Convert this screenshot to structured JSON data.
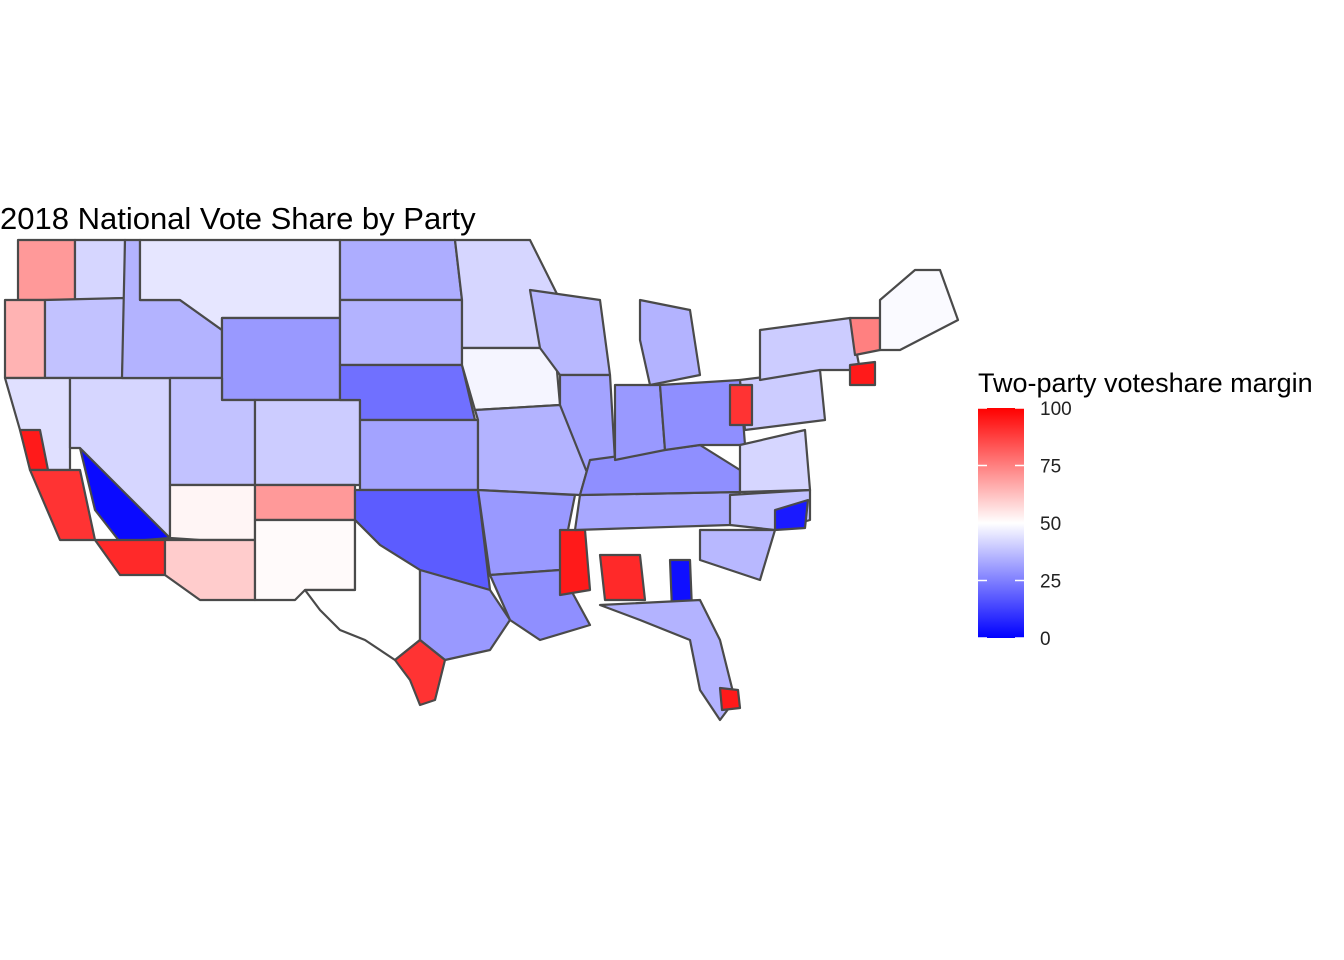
{
  "title": "2018 National Vote Share by Party",
  "legend": {
    "title": "Two-party voteshare margin",
    "ticks": [
      "100",
      "75",
      "50",
      "25",
      "0"
    ],
    "scale": {
      "min": 0,
      "mid": 50,
      "max": 100,
      "low_color": "#0000ff",
      "mid_color": "#ffffff",
      "high_color": "#ff0000"
    }
  },
  "map": {
    "projection": "contiguous-us",
    "border_color": "#4a4a4a",
    "districts": [
      {
        "id": "wa-west",
        "value": 70
      },
      {
        "id": "wa-east",
        "value": 42
      },
      {
        "id": "or-coast",
        "value": 65
      },
      {
        "id": "or-east",
        "value": 38
      },
      {
        "id": "ca-north",
        "value": 44
      },
      {
        "id": "ca-bay",
        "value": 95
      },
      {
        "id": "ca-central",
        "value": 90
      },
      {
        "id": "ca-east",
        "value": 2
      },
      {
        "id": "ca-south",
        "value": 92
      },
      {
        "id": "nv",
        "value": 42
      },
      {
        "id": "id",
        "value": 35
      },
      {
        "id": "mt",
        "value": 45
      },
      {
        "id": "wy",
        "value": 30
      },
      {
        "id": "ut",
        "value": 38
      },
      {
        "id": "az-north",
        "value": 52
      },
      {
        "id": "az-south",
        "value": 60
      },
      {
        "id": "co",
        "value": 40
      },
      {
        "id": "nm",
        "value": 51
      },
      {
        "id": "nm-north",
        "value": 70
      },
      {
        "id": "nd",
        "value": 34
      },
      {
        "id": "sd",
        "value": 35
      },
      {
        "id": "ne",
        "value": 22
      },
      {
        "id": "ks",
        "value": 32
      },
      {
        "id": "ok",
        "value": 18
      },
      {
        "id": "tx-west",
        "value": 50
      },
      {
        "id": "tx-east",
        "value": 30
      },
      {
        "id": "tx-south",
        "value": 90
      },
      {
        "id": "mn",
        "value": 42
      },
      {
        "id": "ia",
        "value": 48
      },
      {
        "id": "mo",
        "value": 35
      },
      {
        "id": "ar",
        "value": 30
      },
      {
        "id": "la",
        "value": 28
      },
      {
        "id": "wi",
        "value": 36
      },
      {
        "id": "il",
        "value": 32
      },
      {
        "id": "ms",
        "value": 95
      },
      {
        "id": "al",
        "value": 92
      },
      {
        "id": "ga",
        "value": 3
      },
      {
        "id": "fl",
        "value": 35
      },
      {
        "id": "fl-south",
        "value": 95
      },
      {
        "id": "tn",
        "value": 33
      },
      {
        "id": "ky",
        "value": 28
      },
      {
        "id": "in",
        "value": 30
      },
      {
        "id": "mi",
        "value": 35
      },
      {
        "id": "oh",
        "value": 28
      },
      {
        "id": "pa",
        "value": 40
      },
      {
        "id": "pa-west",
        "value": 90
      },
      {
        "id": "ny",
        "value": 40
      },
      {
        "id": "nc",
        "value": 38
      },
      {
        "id": "nc-east",
        "value": 5
      },
      {
        "id": "sc",
        "value": 36
      },
      {
        "id": "va",
        "value": 42
      },
      {
        "id": "vt",
        "value": 75
      },
      {
        "id": "ma",
        "value": 95
      },
      {
        "id": "me",
        "value": 49
      }
    ]
  }
}
